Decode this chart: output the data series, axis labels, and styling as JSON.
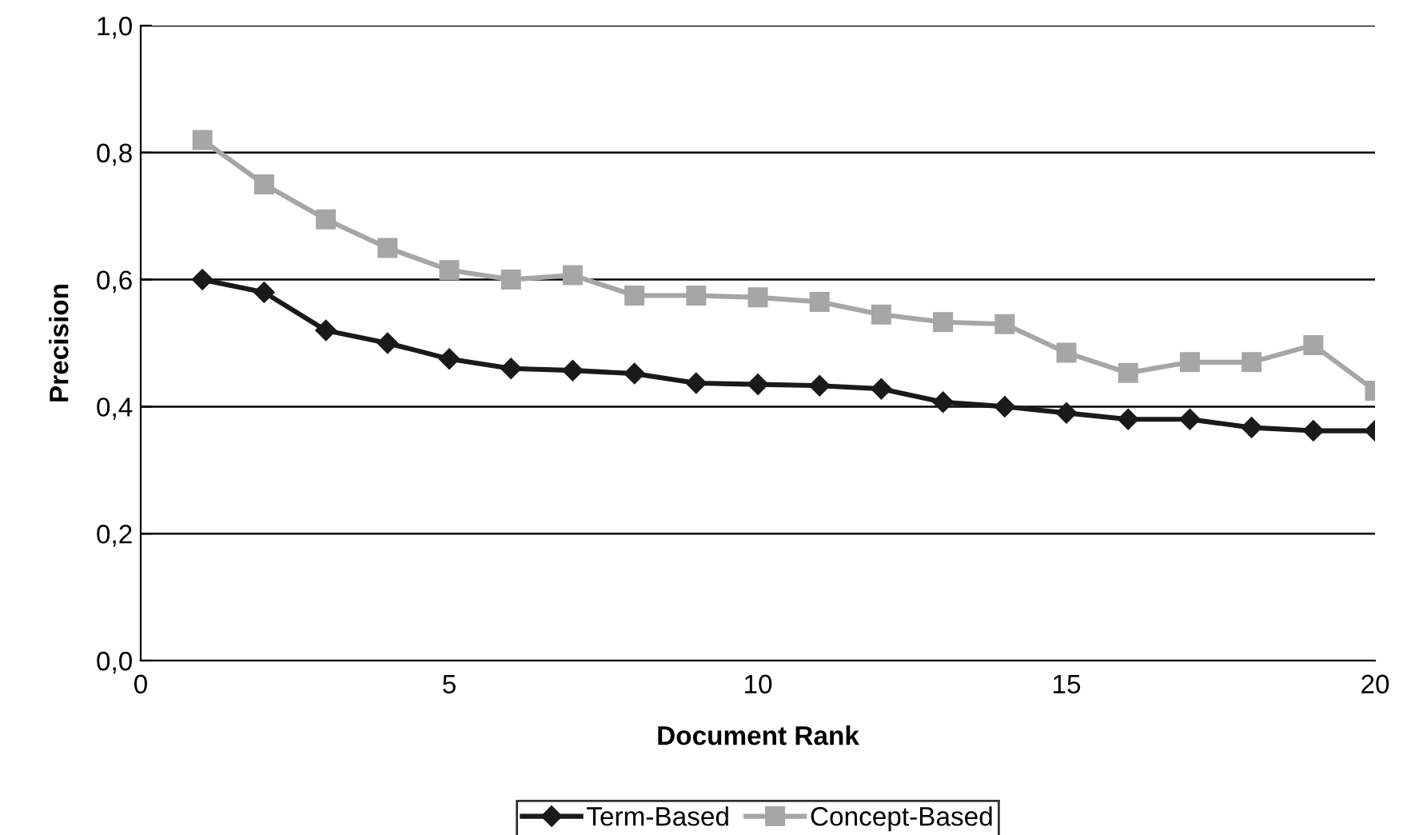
{
  "chart_data": {
    "type": "line",
    "xlabel": "Document Rank",
    "ylabel": "Precision",
    "xlim": [
      0,
      20
    ],
    "xticks": [
      0,
      5,
      10,
      15,
      20
    ],
    "ylim": [
      0,
      1.0
    ],
    "yticks": [
      {
        "value": 0,
        "label": "0,0"
      },
      {
        "value": 0.2,
        "label": "0,2"
      },
      {
        "value": 0.4,
        "label": "0,4"
      },
      {
        "value": 0.6,
        "label": "0,6"
      },
      {
        "value": 0.8,
        "label": "0,8"
      },
      {
        "value": 1.0,
        "label": "1,0"
      }
    ],
    "grid": "y",
    "legend": "bottom",
    "line_style": "solid",
    "x": [
      1,
      2,
      3,
      4,
      5,
      6,
      7,
      8,
      9,
      10,
      11,
      12,
      13,
      14,
      15,
      16,
      17,
      18,
      19,
      20
    ],
    "series": [
      {
        "name": "Term-Based",
        "color": "#1a1a1a",
        "marker": "diamond",
        "values": [
          0.6,
          0.58,
          0.52,
          0.5,
          0.475,
          0.46,
          0.457,
          0.452,
          0.437,
          0.435,
          0.433,
          0.428,
          0.407,
          0.4,
          0.39,
          0.38,
          0.38,
          0.367,
          0.362,
          0.362
        ]
      },
      {
        "name": "Concept-Based",
        "color": "#a6a6a6",
        "marker": "square",
        "values": [
          0.82,
          0.75,
          0.695,
          0.65,
          0.615,
          0.6,
          0.607,
          0.575,
          0.575,
          0.572,
          0.565,
          0.545,
          0.533,
          0.53,
          0.485,
          0.453,
          0.47,
          0.47,
          0.497,
          0.425
        ]
      }
    ]
  }
}
